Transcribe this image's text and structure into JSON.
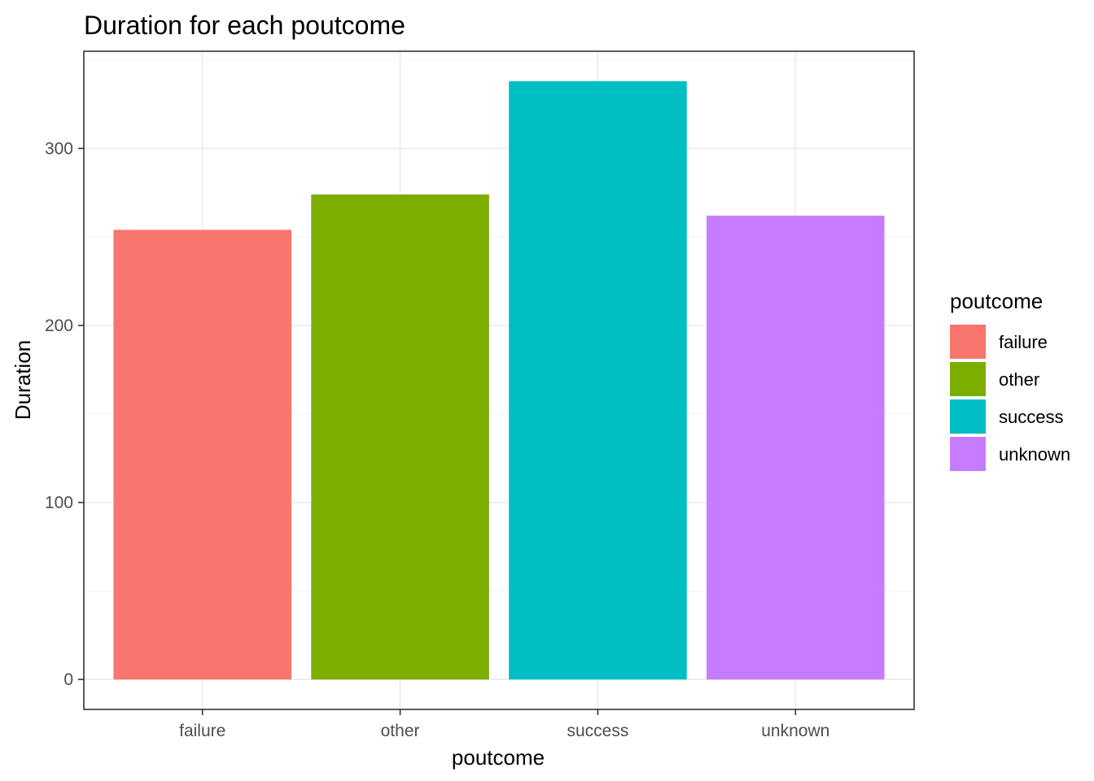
{
  "chart_data": {
    "type": "bar",
    "title": "Duration for each poutcome",
    "xlabel": "poutcome",
    "ylabel": "Duration",
    "categories": [
      "failure",
      "other",
      "success",
      "unknown"
    ],
    "values": [
      254,
      274,
      338,
      262
    ],
    "colors": [
      "#F8766D",
      "#7CAE00",
      "#00BFC4",
      "#C77CFF"
    ],
    "ylim": [
      -16.9,
      354.9
    ],
    "yticks": [
      0,
      100,
      200,
      300
    ],
    "ytick_labels": [
      "0",
      "100",
      "200",
      "300"
    ],
    "grid": true,
    "legend": {
      "title": "poutcome",
      "placement": "right",
      "items": [
        "failure",
        "other",
        "success",
        "unknown"
      ]
    }
  }
}
